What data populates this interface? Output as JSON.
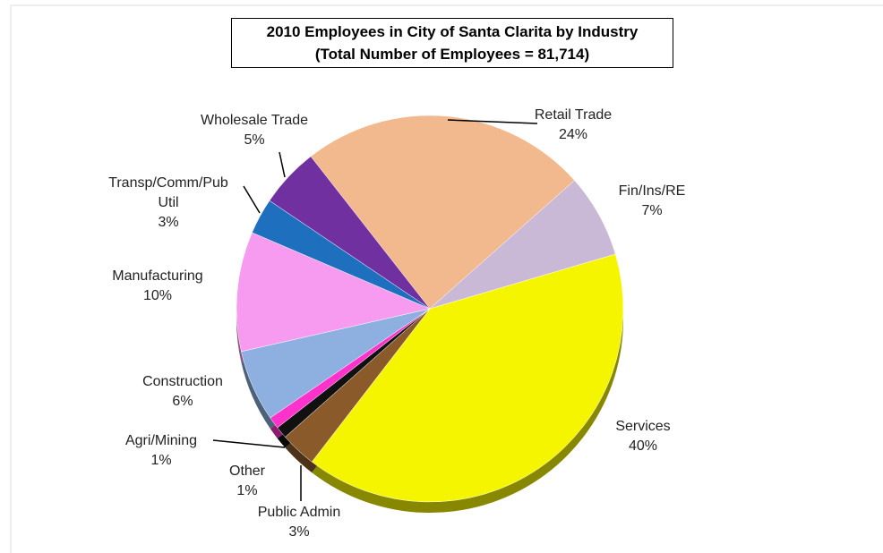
{
  "chart_data": {
    "type": "pie",
    "title": "2010 Employees in City of Santa Clarita by Industry",
    "subtitle": "(Total Number of Employees = 81,714)",
    "categories": [
      "Retail Trade",
      "Fin/Ins/RE",
      "Services",
      "Public Admin",
      "Other",
      "Agri/Mining",
      "Construction",
      "Manufacturing",
      "Transp/Comm/Pub Util",
      "Wholesale Trade"
    ],
    "values": [
      24,
      7,
      40,
      3,
      1,
      1,
      6,
      10,
      3,
      5
    ],
    "value_labels": [
      "24%",
      "7%",
      "40%",
      "3%",
      "1%",
      "1%",
      "6%",
      "10%",
      "3%",
      "5%"
    ],
    "colors": [
      "#f2b98e",
      "#c9b8d6",
      "#f5f500",
      "#8b5a2b",
      "#111111",
      "#ff33cc",
      "#8eb0e0",
      "#f79bf0",
      "#1f6fbf",
      "#7030a0"
    ]
  }
}
